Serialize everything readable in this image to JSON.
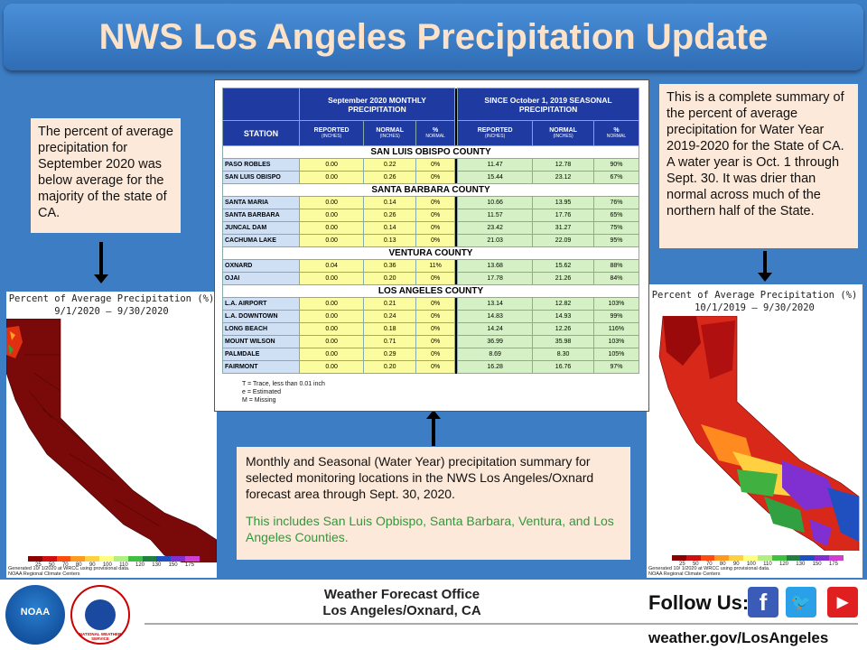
{
  "title": "NWS Los Angeles Precipitation Update",
  "left_note": "The percent of average precipitation for September 2020 was below average for the majority of the state of CA.",
  "right_note": "This is a complete summary of the percent of average precipitation for Water Year 2019-2020 for the State of CA. A water year is Oct. 1 through Sept. 30. It was drier than normal across much of the northern half of the State.",
  "center_note": "Monthly and Seasonal (Water Year) precipitation summary for selected monitoring locations in the NWS Los Angeles/Oxnard  forecast area through  Sept. 30, 2020.",
  "center_note_green": "This includes San Luis Opbispo, Santa Barbara, Ventura, and Los Angeles Counties.",
  "left_map": {
    "title": "Percent of Average Precipitation (%)",
    "dates": "9/1/2020 – 9/30/2020",
    "footer1": "Generated 10/ 1/2020 at WRCC using provisional data.",
    "footer2": "NOAA Regional Climate Centers"
  },
  "right_map": {
    "title": "Percent of Average Precipitation (%)",
    "dates": "10/1/2019 – 9/30/2020",
    "footer1": "Generated 10/ 1/2020 at WRCC using provisional data.",
    "footer2": "NOAA Regional Climate Centers"
  },
  "legend": {
    "labels": [
      "25",
      "50",
      "70",
      "80",
      "90",
      "100",
      "110",
      "120",
      "130",
      "150",
      "175"
    ],
    "colors": [
      "#8b0000",
      "#d01010",
      "#ff4a10",
      "#ff9a20",
      "#ffd040",
      "#ffff80",
      "#b0f080",
      "#40c040",
      "#208040",
      "#2050c0",
      "#8030d0",
      "#d040d0"
    ]
  },
  "table": {
    "monthly_header": "September 2020 MONTHLY PRECIPITATION",
    "seasonal_header": "SINCE October 1, 2019 SEASONAL PRECIPITATION",
    "station_label": "STATION",
    "reported_label": "REPORTED",
    "normal_label": "NORMAL",
    "pct_label": "%",
    "inches": "(INCHES)",
    "normal_small": "NORMAL",
    "counties": [
      {
        "name": "SAN LUIS OBISPO COUNTY",
        "rows": [
          [
            "PASO ROBLES",
            "0.00",
            "0.22",
            "0%",
            "11.47",
            "12.78",
            "90%"
          ],
          [
            "SAN LUIS OBISPO",
            "0.00",
            "0.26",
            "0%",
            "15.44",
            "23.12",
            "67%"
          ]
        ]
      },
      {
        "name": "SANTA BARBARA COUNTY",
        "rows": [
          [
            "SANTA MARIA",
            "0.00",
            "0.14",
            "0%",
            "10.66",
            "13.95",
            "76%"
          ],
          [
            "SANTA BARBARA",
            "0.00",
            "0.26",
            "0%",
            "11.57",
            "17.76",
            "65%"
          ],
          [
            "JUNCAL DAM",
            "0.00",
            "0.14",
            "0%",
            "23.42",
            "31.27",
            "75%"
          ],
          [
            "CACHUMA LAKE",
            "0.00",
            "0.13",
            "0%",
            "21.03",
            "22.09",
            "95%"
          ]
        ]
      },
      {
        "name": "VENTURA COUNTY",
        "rows": [
          [
            "OXNARD",
            "0.04",
            "0.36",
            "11%",
            "13.68",
            "15.62",
            "88%"
          ],
          [
            "OJAI",
            "0.00",
            "0.20",
            "0%",
            "17.78",
            "21.26",
            "84%"
          ]
        ]
      },
      {
        "name": "LOS ANGELES COUNTY",
        "rows": [
          [
            "L.A. AIRPORT",
            "0.00",
            "0.21",
            "0%",
            "13.14",
            "12.82",
            "103%"
          ],
          [
            "L.A. DOWNTOWN",
            "0.00",
            "0.24",
            "0%",
            "14.83",
            "14.93",
            "99%"
          ],
          [
            "LONG BEACH",
            "0.00",
            "0.18",
            "0%",
            "14.24",
            "12.26",
            "116%"
          ],
          [
            "MOUNT WILSON",
            "0.00",
            "0.71",
            "0%",
            "36.99",
            "35.98",
            "103%"
          ],
          [
            "PALMDALE",
            "0.00",
            "0.29",
            "0%",
            "8.69",
            "8.30",
            "105%"
          ],
          [
            "FAIRMONT",
            "0.00",
            "0.20",
            "0%",
            "16.28",
            "16.76",
            "97%"
          ]
        ]
      }
    ],
    "notes": [
      "T = Trace, less than 0.01 inch",
      "e = Estimated",
      "M = Missing"
    ]
  },
  "footer": {
    "noaa": "NOAA",
    "nws": "NATIONAL WEATHER SERVICE",
    "office_line1": "Weather Forecast Office",
    "office_line2": "Los Angeles/Oxnard, CA",
    "follow": "Follow Us:",
    "url": "weather.gov/LosAngeles"
  }
}
